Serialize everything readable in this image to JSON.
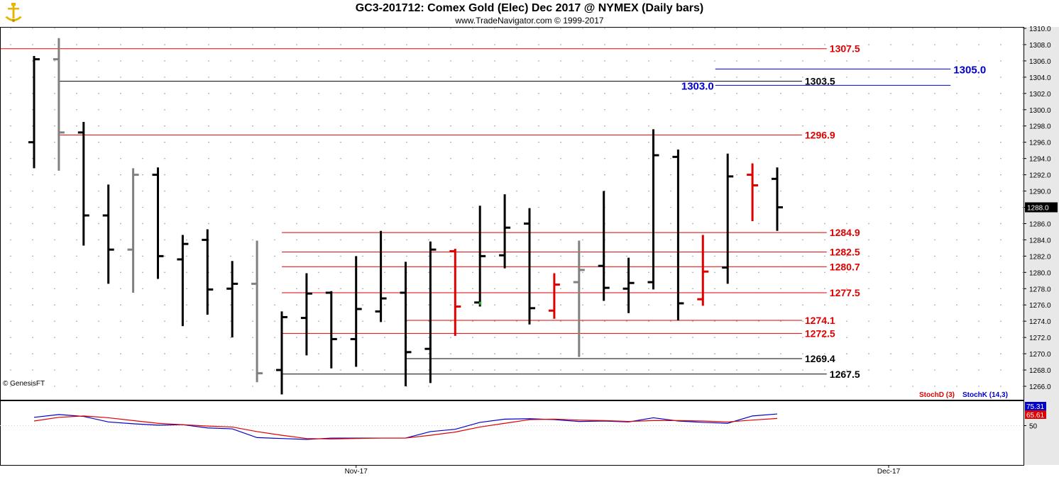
{
  "header": {
    "title": "GC3-201712:  Comex Gold (Elec) Dec 2017 @ NYMEX  (Daily bars)",
    "subtitle": "www.TradeNavigator.com © 1999-2017"
  },
  "credit": "© GenesisFT",
  "colors": {
    "up_bar": "#000000",
    "gray_bar": "#808080",
    "red": "#e00000",
    "blue": "#0000cc",
    "stochK": "#0000dd",
    "stochD": "#dd0000",
    "grid": "#9a9a9a"
  },
  "chart_data": [
    {
      "type": "ohlc",
      "title": "GC3-201712:  Comex Gold (Elec) Dec 2017 @ NYMEX  (Daily bars)",
      "ylim": [
        1264,
        1310
      ],
      "y_ticks": [
        "1266.0",
        "1268.0",
        "1270.0",
        "1272.0",
        "1274.0",
        "1276.0",
        "1278.0",
        "1280.0",
        "1282.0",
        "1284.0",
        "1286.0",
        "1288.0",
        "1290.0",
        "1292.0",
        "1294.0",
        "1296.0",
        "1298.0",
        "1300.0",
        "1302.0",
        "1304.0",
        "1306.0",
        "1308.0",
        "1310.0"
      ],
      "last_price_label": "1288.0",
      "last_price": 1288.0,
      "x_labels": [
        {
          "text": "Nov-17",
          "bar_index": 13
        },
        {
          "text": "Dec-17",
          "bar_index": 34.5
        }
      ],
      "bars": [
        {
          "o": 1296.0,
          "h": 1306.6,
          "l": 1292.8,
          "c": 1306.2,
          "color": "black"
        },
        {
          "o": 1306.2,
          "h": 1308.8,
          "l": 1292.5,
          "c": 1297.2,
          "color": "gray"
        },
        {
          "o": 1297.2,
          "h": 1298.5,
          "l": 1283.3,
          "c": 1287.0,
          "color": "black"
        },
        {
          "o": 1287.0,
          "h": 1290.8,
          "l": 1278.6,
          "c": 1282.8,
          "color": "black"
        },
        {
          "o": 1282.8,
          "h": 1292.8,
          "l": 1277.5,
          "c": 1292.0,
          "color": "gray"
        },
        {
          "o": 1292.0,
          "h": 1292.9,
          "l": 1279.2,
          "c": 1282.0,
          "color": "black"
        },
        {
          "o": 1281.6,
          "h": 1284.6,
          "l": 1273.4,
          "c": 1283.5,
          "color": "black"
        },
        {
          "o": 1284.0,
          "h": 1285.3,
          "l": 1274.8,
          "c": 1277.9,
          "color": "black"
        },
        {
          "o": 1278.0,
          "h": 1281.4,
          "l": 1272.0,
          "c": 1278.6,
          "color": "black"
        },
        {
          "o": 1278.6,
          "h": 1283.9,
          "l": 1266.5,
          "c": 1267.6,
          "color": "gray"
        },
        {
          "o": 1268.0,
          "h": 1275.2,
          "l": 1265.0,
          "c": 1274.5,
          "color": "black"
        },
        {
          "o": 1274.4,
          "h": 1279.9,
          "l": 1269.8,
          "c": 1277.4,
          "color": "black"
        },
        {
          "o": 1277.5,
          "h": 1277.7,
          "l": 1268.2,
          "c": 1271.8,
          "color": "black"
        },
        {
          "o": 1271.8,
          "h": 1282.0,
          "l": 1268.4,
          "c": 1275.5,
          "color": "black"
        },
        {
          "o": 1275.2,
          "h": 1285.1,
          "l": 1273.9,
          "c": 1276.8,
          "color": "black"
        },
        {
          "o": 1277.5,
          "h": 1281.3,
          "l": 1266.0,
          "c": 1270.2,
          "color": "black"
        },
        {
          "o": 1270.6,
          "h": 1283.8,
          "l": 1266.4,
          "c": 1282.8,
          "color": "black"
        },
        {
          "o": 1282.6,
          "h": 1282.9,
          "l": 1272.2,
          "c": 1275.8,
          "color": "red"
        },
        {
          "o": 1276.3,
          "h": 1288.2,
          "l": 1275.8,
          "c": 1282.0,
          "color": "black",
          "close_mark": "green"
        },
        {
          "o": 1282.1,
          "h": 1289.6,
          "l": 1280.5,
          "c": 1285.5,
          "color": "black"
        },
        {
          "o": 1286.0,
          "h": 1287.9,
          "l": 1273.6,
          "c": 1275.6,
          "color": "black"
        },
        {
          "o": 1275.3,
          "h": 1279.9,
          "l": 1274.3,
          "c": 1278.5,
          "color": "red"
        },
        {
          "o": 1278.8,
          "h": 1283.9,
          "l": 1269.6,
          "c": 1280.3,
          "color": "gray"
        },
        {
          "o": 1280.8,
          "h": 1290.0,
          "l": 1276.5,
          "c": 1278.1,
          "color": "black"
        },
        {
          "o": 1278.0,
          "h": 1281.8,
          "l": 1275.0,
          "c": 1278.7,
          "color": "black"
        },
        {
          "o": 1278.8,
          "h": 1297.6,
          "l": 1277.9,
          "c": 1294.4,
          "color": "black"
        },
        {
          "o": 1294.2,
          "h": 1295.1,
          "l": 1274.1,
          "c": 1276.2,
          "color": "black"
        },
        {
          "o": 1276.7,
          "h": 1284.6,
          "l": 1275.9,
          "c": 1280.1,
          "color": "red"
        },
        {
          "o": 1280.6,
          "h": 1294.6,
          "l": 1278.6,
          "c": 1291.8,
          "color": "black"
        },
        {
          "o": 1292.0,
          "h": 1293.4,
          "l": 1286.3,
          "c": 1290.7,
          "color": "red"
        },
        {
          "o": 1291.5,
          "h": 1292.9,
          "l": 1285.1,
          "c": 1288.0,
          "color": "black"
        }
      ],
      "levels": [
        {
          "value": 1307.5,
          "label": "1307.5",
          "color": "red",
          "from": -1.5,
          "to": 32
        },
        {
          "value": 1303.5,
          "label": "1303.5",
          "color": "black",
          "from": 1,
          "to": 31
        },
        {
          "value": 1296.9,
          "label": "1296.9",
          "color": "red",
          "from": 1,
          "to": 31
        },
        {
          "value": 1284.9,
          "label": "1284.9",
          "color": "red",
          "from": 10,
          "to": 32
        },
        {
          "value": 1282.5,
          "label": "1282.5",
          "color": "red",
          "from": 10,
          "to": 32
        },
        {
          "value": 1280.7,
          "label": "1280.7",
          "color": "red",
          "from": 10,
          "to": 32
        },
        {
          "value": 1277.5,
          "label": "1277.5",
          "color": "red",
          "from": 10,
          "to": 32
        },
        {
          "value": 1274.1,
          "label": "1274.1",
          "color": "red",
          "from": 15,
          "to": 31
        },
        {
          "value": 1272.5,
          "label": "1272.5",
          "color": "red",
          "from": 10,
          "to": 31
        },
        {
          "value": 1269.4,
          "label": "1269.4",
          "color": "black",
          "from": 15,
          "to": 31
        },
        {
          "value": 1267.5,
          "label": "1267.5",
          "color": "black",
          "from": 10,
          "to": 32
        }
      ],
      "targets": [
        {
          "value": 1305.0,
          "label": "1305.0",
          "color": "blue",
          "from": 27.5,
          "to": 37,
          "label_side": "right"
        },
        {
          "value": 1303.0,
          "label": "1303.0",
          "color": "blue",
          "from": 27.5,
          "to": 37,
          "label_side": "left"
        }
      ]
    },
    {
      "type": "line",
      "title": "",
      "ylim": [
        0,
        100
      ],
      "y_ticks": [
        "50"
      ],
      "legend": [
        {
          "text": "StochD (3)",
          "color": "red"
        },
        {
          "text": "StochK (14,3)",
          "color": "blue"
        }
      ],
      "last_values": [
        {
          "label": "75.31",
          "color": "blue",
          "value": 75.31
        },
        {
          "label": "65.61",
          "color": "red",
          "value": 65.61
        }
      ],
      "series": [
        {
          "name": "StochK (14,3)",
          "color": "blue",
          "values": [
            68,
            74,
            70,
            58,
            54,
            51,
            52,
            45,
            43,
            24,
            22,
            20,
            23,
            23,
            23,
            23,
            37,
            42,
            57,
            64,
            65,
            63,
            59,
            60,
            58,
            67,
            60,
            57,
            55,
            71,
            75.31
          ]
        },
        {
          "name": "StochD (3)",
          "color": "red",
          "values": [
            60,
            68,
            71,
            67,
            61,
            55,
            52,
            49,
            47,
            37,
            29,
            22,
            21,
            22,
            23,
            23,
            29,
            36,
            47,
            55,
            63,
            64,
            62,
            61,
            59,
            61,
            61,
            60,
            58,
            62,
            65.61
          ]
        }
      ]
    }
  ]
}
